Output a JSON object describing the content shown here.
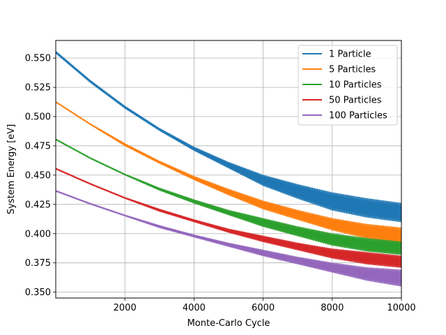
{
  "chart_data": {
    "type": "line",
    "title": "",
    "xlabel": "Monte-Carlo Cycle",
    "ylabel": "System Energy [eV]",
    "xlim": [
      0,
      10000
    ],
    "ylim": [
      0.345,
      0.565
    ],
    "xticks": [
      2000,
      4000,
      6000,
      8000,
      10000
    ],
    "yticks": [
      0.35,
      0.375,
      0.4,
      0.425,
      0.45,
      0.475,
      0.5,
      0.525,
      0.55
    ],
    "xtick_labels": [
      "2000",
      "4000",
      "6000",
      "8000",
      "10000"
    ],
    "ytick_labels": [
      "0.350",
      "0.375",
      "0.400",
      "0.425",
      "0.450",
      "0.475",
      "0.500",
      "0.525",
      "0.550"
    ],
    "grid": true,
    "legend_position": "top-right",
    "x": [
      0,
      1000,
      2000,
      3000,
      4000,
      5000,
      6000,
      7000,
      8000,
      9000,
      10000
    ],
    "series": [
      {
        "name": "1 Particle",
        "color": "#1f77b4",
        "upper": [
          0.556,
          0.531,
          0.509,
          0.49,
          0.474,
          0.461,
          0.45,
          0.442,
          0.435,
          0.43,
          0.426
        ],
        "lower": [
          0.554,
          0.529,
          0.507,
          0.488,
          0.471,
          0.456,
          0.441,
          0.43,
          0.42,
          0.414,
          0.41
        ]
      },
      {
        "name": "5 Particles",
        "color": "#ff7f0e",
        "upper": [
          0.513,
          0.494,
          0.477,
          0.462,
          0.449,
          0.438,
          0.428,
          0.42,
          0.413,
          0.408,
          0.405
        ],
        "lower": [
          0.512,
          0.493,
          0.475,
          0.46,
          0.446,
          0.433,
          0.421,
          0.412,
          0.403,
          0.396,
          0.392
        ]
      },
      {
        "name": "10 Particles",
        "color": "#2ca02c",
        "upper": [
          0.481,
          0.465,
          0.451,
          0.439,
          0.429,
          0.42,
          0.413,
          0.406,
          0.4,
          0.396,
          0.393
        ],
        "lower": [
          0.48,
          0.464,
          0.45,
          0.437,
          0.426,
          0.416,
          0.406,
          0.398,
          0.39,
          0.385,
          0.382
        ]
      },
      {
        "name": "50 Particles",
        "color": "#d62728",
        "upper": [
          0.456,
          0.443,
          0.431,
          0.421,
          0.412,
          0.404,
          0.398,
          0.392,
          0.387,
          0.384,
          0.381
        ],
        "lower": [
          0.455,
          0.442,
          0.43,
          0.419,
          0.41,
          0.401,
          0.393,
          0.386,
          0.379,
          0.374,
          0.371
        ]
      },
      {
        "name": "100 Particles",
        "color": "#9467bd",
        "upper": [
          0.437,
          0.426,
          0.416,
          0.407,
          0.399,
          0.392,
          0.386,
          0.38,
          0.375,
          0.371,
          0.369
        ],
        "lower": [
          0.436,
          0.425,
          0.415,
          0.405,
          0.397,
          0.389,
          0.381,
          0.374,
          0.367,
          0.36,
          0.355
        ]
      }
    ]
  }
}
